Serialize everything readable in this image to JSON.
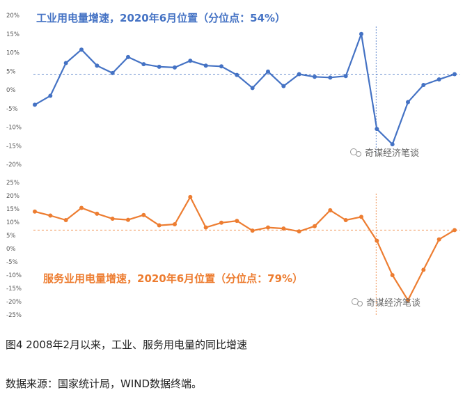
{
  "chart_data": [
    {
      "type": "line",
      "title": "工业用电量增速，2020年6月位置（分位点：54%）",
      "color": "#4472c4",
      "y_ticks": [
        "20%",
        "15%",
        "10%",
        "5%",
        "0%",
        "-5%",
        "-10%",
        "-15%",
        "-20%"
      ],
      "ylim": [
        -20,
        20
      ],
      "series": [
        {
          "values": [
            -4,
            -1.6,
            7.2,
            10.8,
            6.5,
            4.5,
            8.8,
            6.9,
            6.2,
            6,
            7.8,
            6.5,
            6.3,
            4,
            0.5,
            4.9,
            1,
            4.2,
            3.5,
            3.3,
            3.7,
            15,
            -10.5,
            -14.6,
            -3.3,
            1.3,
            2.8,
            4.2
          ]
        }
      ],
      "position_line": 4.2,
      "marker_index": 22,
      "watermark": "奇谋经济笔谈"
    },
    {
      "type": "line",
      "title": "服务业用电量增速，2020年6月位置（分位点：79%）",
      "color": "#ed7d31",
      "y_ticks": [
        "25%",
        "20%",
        "15%",
        "10%",
        "5%",
        "0%",
        "-5%",
        "-10%",
        "-15%",
        "-20%",
        "-25%"
      ],
      "ylim": [
        -25,
        25
      ],
      "series": [
        {
          "values": [
            14,
            12.5,
            10.8,
            15.4,
            13.2,
            11.3,
            10.9,
            12.7,
            8.8,
            9.2,
            19.5,
            8,
            9.8,
            10.5,
            6.8,
            8,
            7.6,
            6.5,
            8.5,
            14.5,
            10.8,
            12,
            3,
            -10,
            -19.5,
            -8,
            3.5,
            7
          ]
        }
      ],
      "position_line": 7,
      "marker_index": 22,
      "watermark": "奇谋经济笔谈"
    }
  ],
  "caption": "图4 2008年2月以来，工业、服务用电量的同比增速",
  "source": "数据来源：国家统计局，WIND数据终端。"
}
